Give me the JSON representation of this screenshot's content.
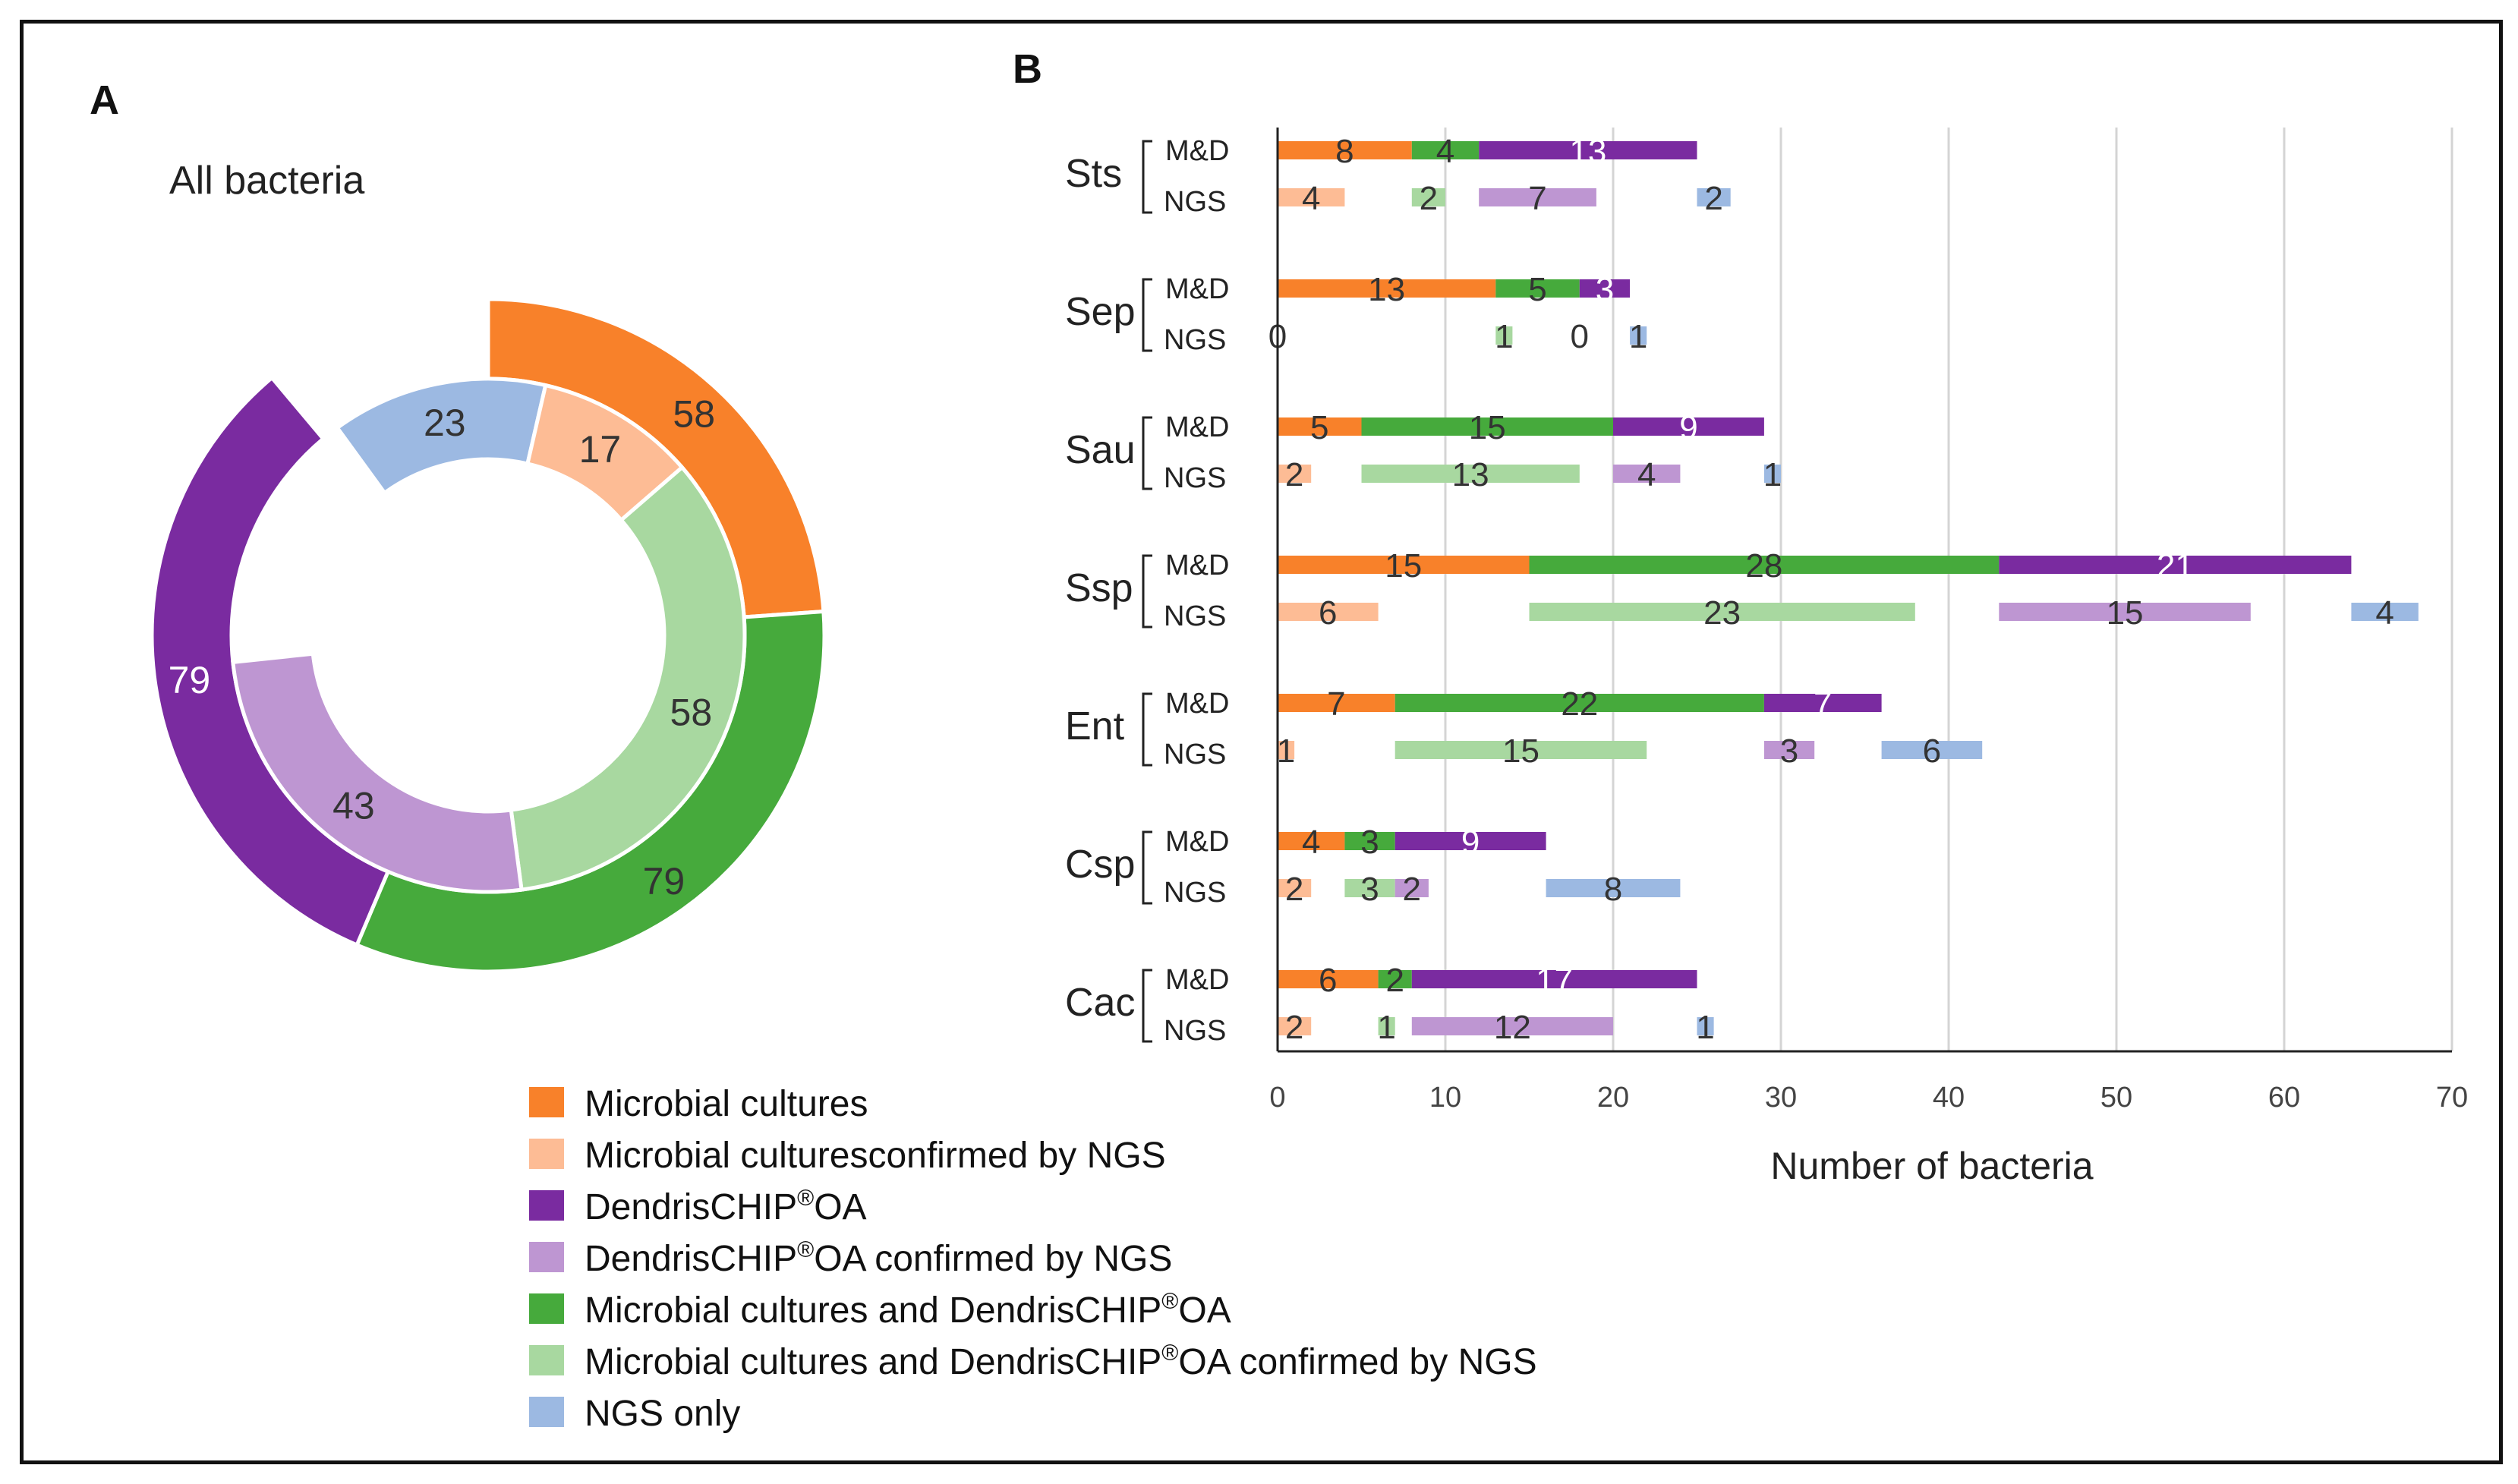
{
  "panels": {
    "a_letter": "A",
    "b_letter": "B"
  },
  "colors": {
    "microbial_cultures": "#F8812A",
    "microbial_cultures_confirmed": "#FDBC95",
    "dendrischip": "#7A2BA0",
    "dendrischip_confirmed": "#BE96D2",
    "both": "#46AA3C",
    "both_confirmed": "#A8D8A0",
    "ngs_only": "#9CB9E2"
  },
  "legend": {
    "items": [
      {
        "key": "microbial_cultures",
        "color": "#F8812A",
        "label": "Microbial cultures",
        "sup": "",
        "suffix": ""
      },
      {
        "key": "microbial_cultures_confirmed",
        "color": "#FDBC95",
        "label": "Microbial culturesconfirmed by NGS",
        "sup": "",
        "suffix": ""
      },
      {
        "key": "dendrischip",
        "color": "#7A2BA0",
        "label": "DendrisCHIP",
        "sup": "®",
        "suffix": "OA"
      },
      {
        "key": "dendrischip_confirmed",
        "color": "#BE96D2",
        "label": "DendrisCHIP",
        "sup": "®",
        "suffix": "OA confirmed by NGS"
      },
      {
        "key": "both",
        "color": "#46AA3C",
        "label": "Microbial cultures and DendrisCHIP",
        "sup": "®",
        "suffix": "OA"
      },
      {
        "key": "both_confirmed",
        "color": "#A8D8A0",
        "label": "Microbial cultures and DendrisCHIP",
        "sup": "®",
        "suffix": "OA confirmed by NGS"
      },
      {
        "key": "ngs_only",
        "color": "#9CB9E2",
        "label": "NGS only",
        "sup": "",
        "suffix": ""
      }
    ]
  },
  "chart_data": [
    {
      "type": "pie",
      "title": "All bacteria",
      "outer_ring": [
        {
          "key": "microbial_cultures",
          "value": 58,
          "color": "#F8812A"
        },
        {
          "key": "both",
          "value": 79,
          "color": "#46AA3C"
        },
        {
          "key": "dendrischip",
          "value": 79,
          "color": "#7A2BA0"
        }
      ],
      "inner_ring": [
        {
          "key": "ngs_only",
          "value": 23,
          "color": "#9CB9E2"
        },
        {
          "key": "microbial_cultures_confirmed",
          "value": 17,
          "color": "#FDBC95"
        },
        {
          "key": "both_confirmed",
          "value": 58,
          "color": "#A8D8A0"
        },
        {
          "key": "dendrischip_confirmed",
          "value": 43,
          "color": "#BE96D2"
        }
      ]
    },
    {
      "type": "bar",
      "orientation": "horizontal",
      "stacked": true,
      "xlabel": "Number of bacteria",
      "xlim": [
        0,
        70
      ],
      "xticks": [
        0,
        10,
        20,
        30,
        40,
        50,
        60,
        70
      ],
      "grid": true,
      "row_labels": [
        "M&D",
        "NGS"
      ],
      "categories": [
        {
          "name": "Sts",
          "md": [
            {
              "value": 8,
              "key": "microbial_cultures"
            },
            {
              "value": 4,
              "key": "both"
            },
            {
              "value": 13,
              "key": "dendrischip"
            }
          ],
          "ngs": [
            {
              "start": 0,
              "end": 4,
              "label": "4",
              "key": "microbial_cultures_confirmed"
            },
            {
              "start": 8,
              "end": 10,
              "label": "2",
              "key": "both_confirmed"
            },
            {
              "start": 12,
              "end": 19,
              "label": "7",
              "key": "dendrischip_confirmed"
            },
            {
              "start": 25,
              "end": 27,
              "label": "2",
              "key": "ngs_only"
            }
          ]
        },
        {
          "name": "Sep",
          "md": [
            {
              "value": 13,
              "key": "microbial_cultures"
            },
            {
              "value": 5,
              "key": "both"
            },
            {
              "value": 3,
              "key": "dendrischip"
            }
          ],
          "ngs": [
            {
              "start": 0,
              "end": 0,
              "label": "0",
              "key": "microbial_cultures_confirmed"
            },
            {
              "start": 13,
              "end": 14,
              "label": "1",
              "key": "both_confirmed"
            },
            {
              "start": 18,
              "end": 18,
              "label": "0",
              "key": "dendrischip_confirmed"
            },
            {
              "start": 21,
              "end": 22,
              "label": "1",
              "key": "ngs_only"
            }
          ]
        },
        {
          "name": "Sau",
          "md": [
            {
              "value": 5,
              "key": "microbial_cultures"
            },
            {
              "value": 15,
              "key": "both"
            },
            {
              "value": 9,
              "key": "dendrischip"
            }
          ],
          "ngs": [
            {
              "start": 0,
              "end": 2,
              "label": "2",
              "key": "microbial_cultures_confirmed"
            },
            {
              "start": 5,
              "end": 18,
              "label": "13",
              "key": "both_confirmed"
            },
            {
              "start": 20,
              "end": 24,
              "label": "4",
              "key": "dendrischip_confirmed"
            },
            {
              "start": 29,
              "end": 30,
              "label": "1",
              "key": "ngs_only"
            }
          ]
        },
        {
          "name": "Ssp",
          "md": [
            {
              "value": 15,
              "key": "microbial_cultures"
            },
            {
              "value": 28,
              "key": "both"
            },
            {
              "value": 21,
              "key": "dendrischip"
            }
          ],
          "ngs": [
            {
              "start": 0,
              "end": 6,
              "label": "6",
              "key": "microbial_cultures_confirmed"
            },
            {
              "start": 15,
              "end": 38,
              "label": "23",
              "key": "both_confirmed"
            },
            {
              "start": 43,
              "end": 58,
              "label": "15",
              "key": "dendrischip_confirmed"
            },
            {
              "start": 64,
              "end": 68,
              "label": "4",
              "key": "ngs_only"
            }
          ]
        },
        {
          "name": "Ent",
          "md": [
            {
              "value": 7,
              "key": "microbial_cultures"
            },
            {
              "value": 22,
              "key": "both"
            },
            {
              "value": 7,
              "key": "dendrischip"
            }
          ],
          "ngs": [
            {
              "start": 0,
              "end": 1,
              "label": "1",
              "key": "microbial_cultures_confirmed"
            },
            {
              "start": 7,
              "end": 22,
              "label": "15",
              "key": "both_confirmed"
            },
            {
              "start": 29,
              "end": 32,
              "label": "3",
              "key": "dendrischip_confirmed"
            },
            {
              "start": 36,
              "end": 42,
              "label": "6",
              "key": "ngs_only"
            }
          ]
        },
        {
          "name": "Csp",
          "md": [
            {
              "value": 4,
              "key": "microbial_cultures"
            },
            {
              "value": 3,
              "key": "both"
            },
            {
              "value": 9,
              "key": "dendrischip"
            }
          ],
          "ngs": [
            {
              "start": 0,
              "end": 2,
              "label": "2",
              "key": "microbial_cultures_confirmed"
            },
            {
              "start": 4,
              "end": 7,
              "label": "3",
              "key": "both_confirmed"
            },
            {
              "start": 7,
              "end": 9,
              "label": "2",
              "key": "dendrischip_confirmed"
            },
            {
              "start": 16,
              "end": 24,
              "label": "8",
              "key": "ngs_only"
            }
          ]
        },
        {
          "name": "Cac",
          "md": [
            {
              "value": 6,
              "key": "microbial_cultures"
            },
            {
              "value": 2,
              "key": "both"
            },
            {
              "value": 17,
              "key": "dendrischip"
            }
          ],
          "ngs": [
            {
              "start": 0,
              "end": 2,
              "label": "2",
              "key": "microbial_cultures_confirmed"
            },
            {
              "start": 6,
              "end": 7,
              "label": "1",
              "key": "both_confirmed"
            },
            {
              "start": 8,
              "end": 20,
              "label": "12",
              "key": "dendrischip_confirmed"
            },
            {
              "start": 25,
              "end": 26,
              "label": "1",
              "key": "ngs_only"
            }
          ]
        }
      ]
    }
  ]
}
